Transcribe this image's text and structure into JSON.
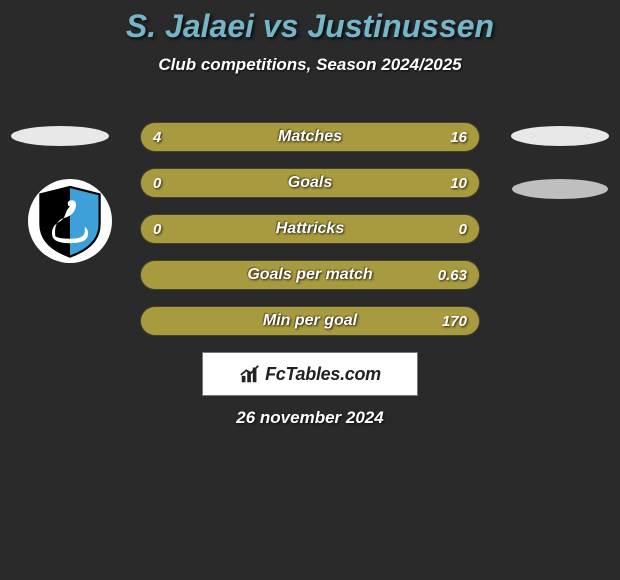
{
  "title": {
    "text": "S. Jalaei vs Justinussen",
    "color": "#74b6c7",
    "fontsize": 32
  },
  "subtitle": {
    "text": "Club competitions, Season 2024/2025",
    "fontsize": 17
  },
  "colors": {
    "left_bar": "#a89a3e",
    "right_bar": "#a89a3e",
    "empty_bar": "#5a5a38",
    "background": "#2a2a2a"
  },
  "stats": [
    {
      "label": "Matches",
      "left_val": "4",
      "right_val": "16",
      "left_pct": 20,
      "right_pct": 80
    },
    {
      "label": "Goals",
      "left_val": "0",
      "right_val": "10",
      "left_pct": 3,
      "right_pct": 97
    },
    {
      "label": "Hattricks",
      "left_val": "0",
      "right_val": "0",
      "left_pct": 50,
      "right_pct": 50
    },
    {
      "label": "Goals per match",
      "left_val": "",
      "right_val": "0.63",
      "left_pct": 3,
      "right_pct": 97
    },
    {
      "label": "Min per goal",
      "left_val": "",
      "right_val": "170",
      "left_pct": 3,
      "right_pct": 97
    }
  ],
  "logo": {
    "text": "FcTables.com"
  },
  "date": "26 november 2024",
  "club_badge": {
    "shield_bg_left": "#000000",
    "shield_bg_right": "#3ea0d8",
    "bird": "#ffffff"
  }
}
